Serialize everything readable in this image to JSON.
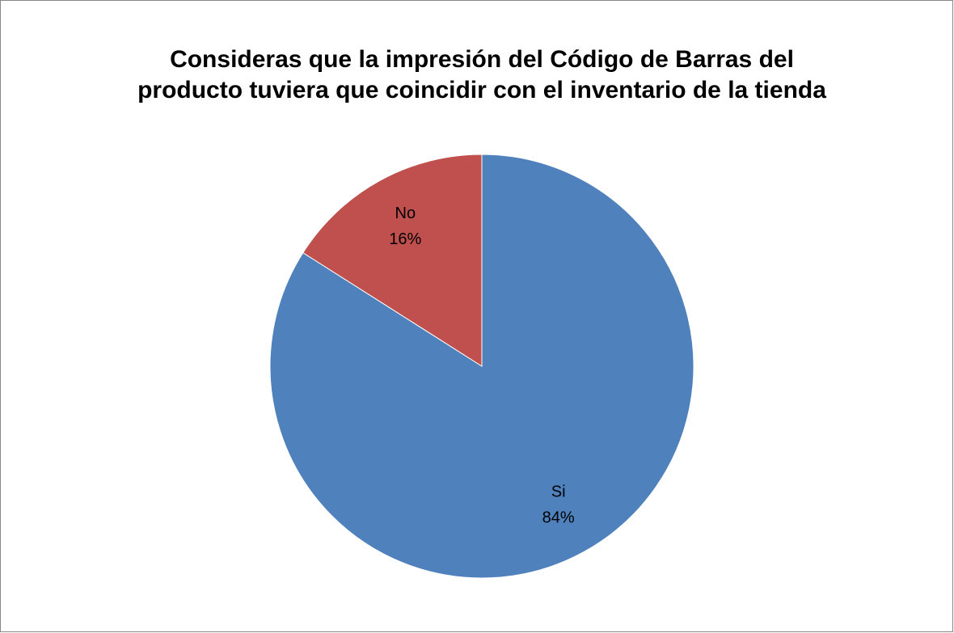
{
  "chart_data": {
    "type": "pie",
    "title": [
      "Consideras que la impresión del Código de Barras del",
      "producto tuviera que coincidir con el inventario de la tienda"
    ],
    "categories": [
      "Si",
      "No"
    ],
    "values": [
      84,
      16
    ],
    "value_labels": [
      "84%",
      "16%"
    ],
    "colors": [
      "#4f81bd",
      "#c0504d"
    ]
  }
}
